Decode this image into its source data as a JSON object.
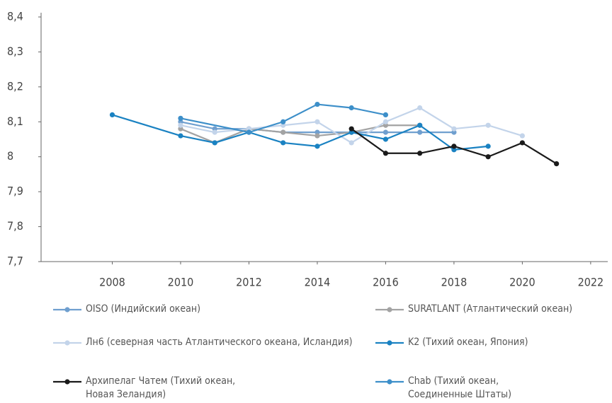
{
  "chart_data": {
    "type": "line",
    "xlim": [
      2006,
      2022.5
    ],
    "xticks": [
      2008,
      2010,
      2012,
      2014,
      2016,
      2018,
      2020,
      2022
    ],
    "ylim": [
      7.7,
      8.4
    ],
    "yticks": [
      {
        "value": 7.7,
        "label": "7,7"
      },
      {
        "value": 7.8,
        "label": "7,8"
      },
      {
        "value": 7.9,
        "label": "7,9"
      },
      8,
      {
        "value": 8.1,
        "label": "8,1"
      },
      {
        "value": 8.2,
        "label": "8,2"
      },
      {
        "value": 8.3,
        "label": "8,3"
      },
      {
        "value": 8.4,
        "label": "8,4"
      }
    ],
    "grid": false,
    "series": [
      {
        "name": "OISO (Индийский океан)",
        "color": "#6f9fcf",
        "x": [
          2010,
          2011,
          2012,
          2013,
          2014,
          2015,
          2016,
          2017,
          2018
        ],
        "values": [
          8.1,
          8.08,
          8.08,
          8.07,
          8.07,
          8.07,
          8.07,
          8.07,
          8.07
        ]
      },
      {
        "name": "SURATLANT (Атлантический океан)",
        "color": "#a3a3a3",
        "x": [
          2010,
          2011,
          2012,
          2013,
          2014,
          2015,
          2016,
          2017
        ],
        "values": [
          8.08,
          8.04,
          8.08,
          8.07,
          8.06,
          8.07,
          8.09,
          8.09
        ]
      },
      {
        "name": "Лн6 (северная часть Атлантического океана, Исландия)",
        "color": "#c3d4ea",
        "x": [
          2010,
          2011,
          2012,
          2013,
          2014,
          2015,
          2016,
          2017,
          2018,
          2019,
          2020
        ],
        "values": [
          8.09,
          8.07,
          8.08,
          8.09,
          8.1,
          8.04,
          8.1,
          8.14,
          8.08,
          8.09,
          8.06
        ]
      },
      {
        "name": "K2 (Тихий океан, Япония)",
        "color": "#1a82c2",
        "x": [
          2008,
          2010,
          2011,
          2012,
          2013,
          2014,
          2015,
          2016,
          2017,
          2018,
          2019
        ],
        "values": [
          8.12,
          8.06,
          8.04,
          8.07,
          8.04,
          8.03,
          8.07,
          8.05,
          8.09,
          8.02,
          8.03
        ]
      },
      {
        "name": "Архипелаг Чатем (Тихий океан, Новая Зеландия)",
        "color": "#1a1a1a",
        "x": [
          2015,
          2016,
          2017,
          2018,
          2019,
          2020,
          2021
        ],
        "values": [
          8.08,
          8.01,
          8.01,
          8.03,
          8.0,
          8.04,
          7.98
        ]
      },
      {
        "name": "Chab (Тихий океан, Соединенные Штаты)",
        "color": "#3d8fc9",
        "x": [
          2010,
          2012,
          2013,
          2014,
          2015,
          2016
        ],
        "values": [
          8.11,
          8.07,
          8.1,
          8.15,
          8.14,
          8.12
        ]
      }
    ]
  }
}
